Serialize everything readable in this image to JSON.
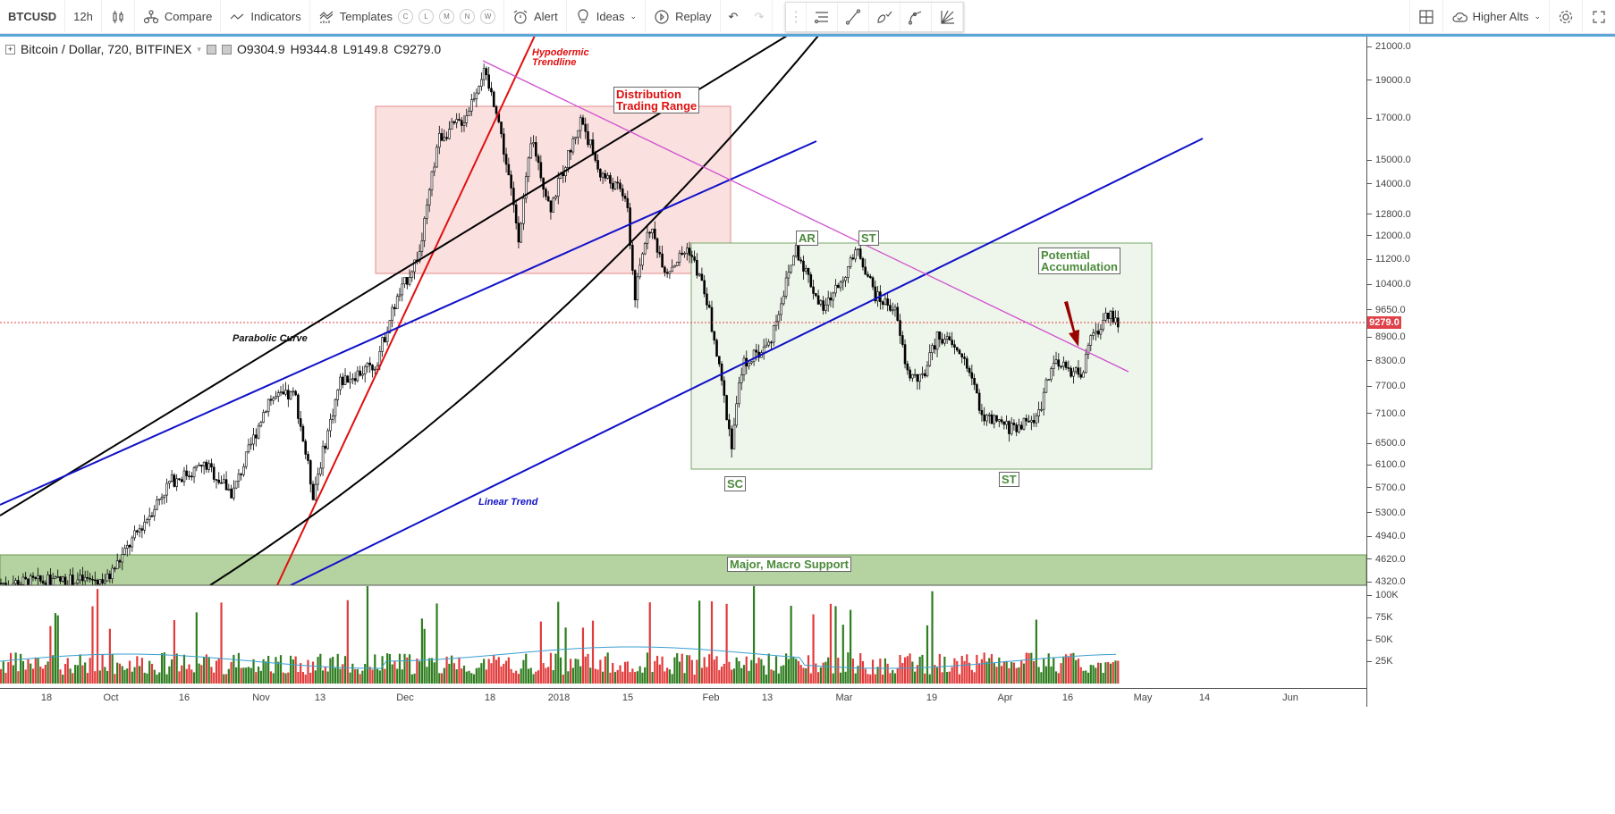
{
  "toolbar": {
    "symbol": "BTCUSD",
    "interval": "12h",
    "compare": "Compare",
    "indicators": "Indicators",
    "templates": "Templates",
    "template_letters": [
      "C",
      "L",
      "M",
      "N",
      "W"
    ],
    "alert": "Alert",
    "ideas": "Ideas",
    "replay": "Replay",
    "layout_name": "Higher Alts"
  },
  "legend": {
    "title": "Bitcoin / Dollar, 720, BITFINEX",
    "open": "O9304.9",
    "high": "H9344.8",
    "low": "L9149.8",
    "close": "C9279.0"
  },
  "price_axis": [
    "21000.0",
    "19000.0",
    "17000.0",
    "15000.0",
    "14000.0",
    "12800.0",
    "12000.0",
    "11200.0",
    "10400.0",
    "9650.0",
    "8900.0",
    "8300.0",
    "7700.0",
    "7100.0",
    "6500.0",
    "6100.0",
    "5700.0",
    "5300.0",
    "4940.0",
    "4620.0",
    "4320.0"
  ],
  "current_price": "9279.0",
  "volume_axis": [
    "100K",
    "75K",
    "50K",
    "25K"
  ],
  "time_axis": [
    "18",
    "Oct",
    "16",
    "Nov",
    "13",
    "Dec",
    "18",
    "2018",
    "15",
    "Feb",
    "13",
    "Mar",
    "19",
    "Apr",
    "16",
    "May",
    "14",
    "Jun"
  ],
  "annotations": {
    "hypodermic": "Hypodermic",
    "trendline": "Trendline",
    "dist1": "Distribution",
    "dist2": "Trading Range",
    "parabolic": "Parabolic Curve",
    "linear": "Linear Trend",
    "ar": "AR",
    "st1": "ST",
    "pot1": "Potential",
    "pot2": "Accumulation",
    "sc": "SC",
    "st2": "ST",
    "macro": "Major, Macro Support"
  },
  "colors": {
    "up": "#2e7d1f",
    "down": "#e23b3b",
    "accent": "#5aa5d8",
    "price_line": "#e0424a"
  },
  "chart_data": {
    "type": "candlestick",
    "scale": "log",
    "ylim": [
      4320,
      21000
    ],
    "approx_path": [
      [
        "Sep 7",
        4300
      ],
      [
        "Oct 1",
        4350
      ],
      [
        "Oct 14",
        5800
      ],
      [
        "Oct 21",
        6100
      ],
      [
        "Oct 26",
        5600
      ],
      [
        "Nov 3",
        7400
      ],
      [
        "Nov 8",
        7500
      ],
      [
        "Nov 12",
        5600
      ],
      [
        "Nov 17",
        7800
      ],
      [
        "Nov 25",
        8200
      ],
      [
        "Nov 28",
        9700
      ],
      [
        "Dec 4",
        11500
      ],
      [
        "Dec 7",
        16000
      ],
      [
        "Dec 12",
        17000
      ],
      [
        "Dec 16",
        19500
      ],
      [
        "Dec 19",
        17500
      ],
      [
        "Dec 22",
        14000
      ],
      [
        "Dec 24",
        12000
      ],
      [
        "Dec 26",
        16000
      ],
      [
        "Dec 30",
        13000
      ],
      [
        "Jan 6",
        17000
      ],
      [
        "Jan 10",
        14500
      ],
      [
        "Jan 15",
        13500
      ],
      [
        "Jan 17",
        10000
      ],
      [
        "Jan 20",
        12500
      ],
      [
        "Jan 23",
        10800
      ],
      [
        "Jan 28",
        11600
      ],
      [
        "Feb 1",
        10000
      ],
      [
        "Feb 4",
        8000
      ],
      [
        "Feb 6",
        6500
      ],
      [
        "Feb 8",
        8200
      ],
      [
        "Feb 14",
        8700
      ],
      [
        "Feb 20",
        11600
      ],
      [
        "Feb 25",
        9600
      ],
      [
        "Mar 5",
        11500
      ],
      [
        "Mar 8",
        10000
      ],
      [
        "Mar 12",
        9700
      ],
      [
        "Mar 15",
        8000
      ],
      [
        "Mar 18",
        7800
      ],
      [
        "Mar 21",
        9000
      ],
      [
        "Mar 27",
        8300
      ],
      [
        "Mar 31",
        7000
      ],
      [
        "Apr 6",
        6800
      ],
      [
        "Apr 11",
        7000
      ],
      [
        "Apr 14",
        8200
      ],
      [
        "Apr 20",
        8000
      ],
      [
        "Apr 22",
        8800
      ],
      [
        "Apr 25",
        9600
      ],
      [
        "Apr 27",
        9279
      ]
    ]
  }
}
